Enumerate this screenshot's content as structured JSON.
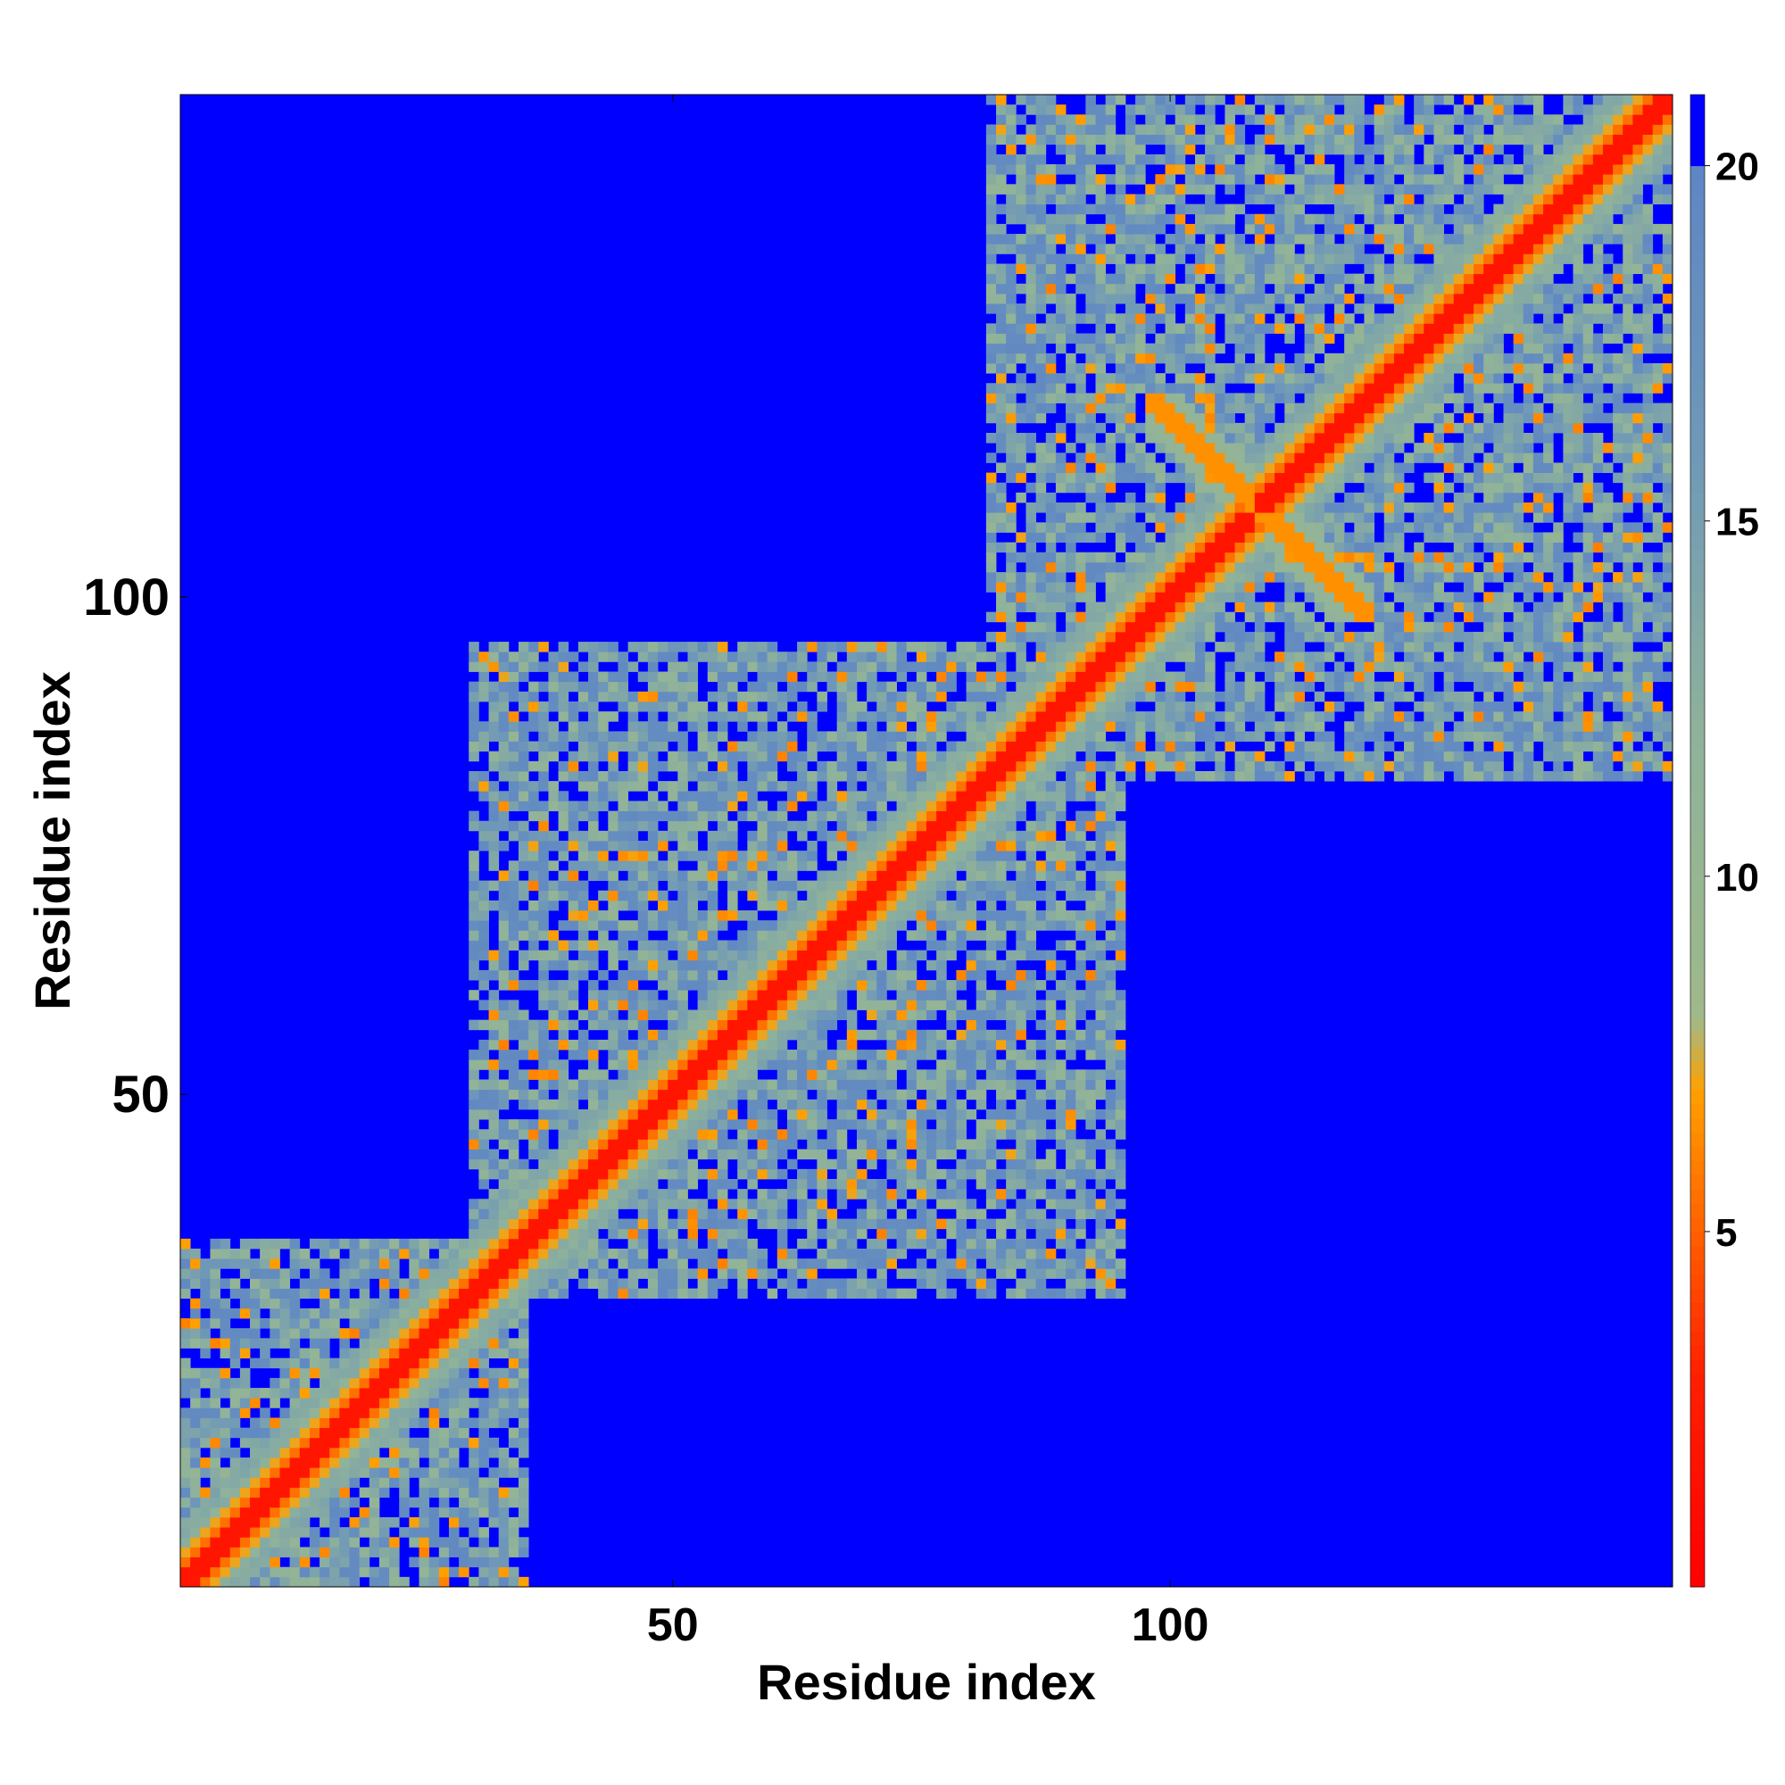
{
  "chart_data": {
    "type": "heatmap",
    "title": "",
    "xlabel": "Residue index",
    "ylabel": "Residue index",
    "n_residues": 150,
    "xlim": [
      1,
      150
    ],
    "ylim": [
      1,
      150
    ],
    "x_ticks": [
      50,
      100
    ],
    "y_ticks": [
      50,
      100
    ],
    "grid": false,
    "colorbar": {
      "range": [
        0,
        21
      ],
      "ticks": [
        5,
        10,
        15,
        20
      ],
      "saturate_above": 20,
      "saturated_color": "#0000ff",
      "stops": [
        {
          "value": 0,
          "color": "#ff0000"
        },
        {
          "value": 3,
          "color": "#ff2000"
        },
        {
          "value": 5,
          "color": "#ff6000"
        },
        {
          "value": 7,
          "color": "#ffa000"
        },
        {
          "value": 8,
          "color": "#9fb98a"
        },
        {
          "value": 12,
          "color": "#8fb29a"
        },
        {
          "value": 16,
          "color": "#6f98b8"
        },
        {
          "value": 20,
          "color": "#5e86c4"
        }
      ]
    },
    "domains": [
      {
        "start": 1,
        "end": 35,
        "label": ""
      },
      {
        "start": 30,
        "end": 95,
        "label": ""
      },
      {
        "start": 82,
        "end": 150,
        "label": ""
      }
    ],
    "crossing_contacts": [
      {
        "from_start": 98,
        "from_end": 108,
        "to_start": 108,
        "to_end": 120
      }
    ],
    "description_values": {
      "diagonal_band_width": 4,
      "offdiagonal_contact_density": 0.12
    }
  }
}
